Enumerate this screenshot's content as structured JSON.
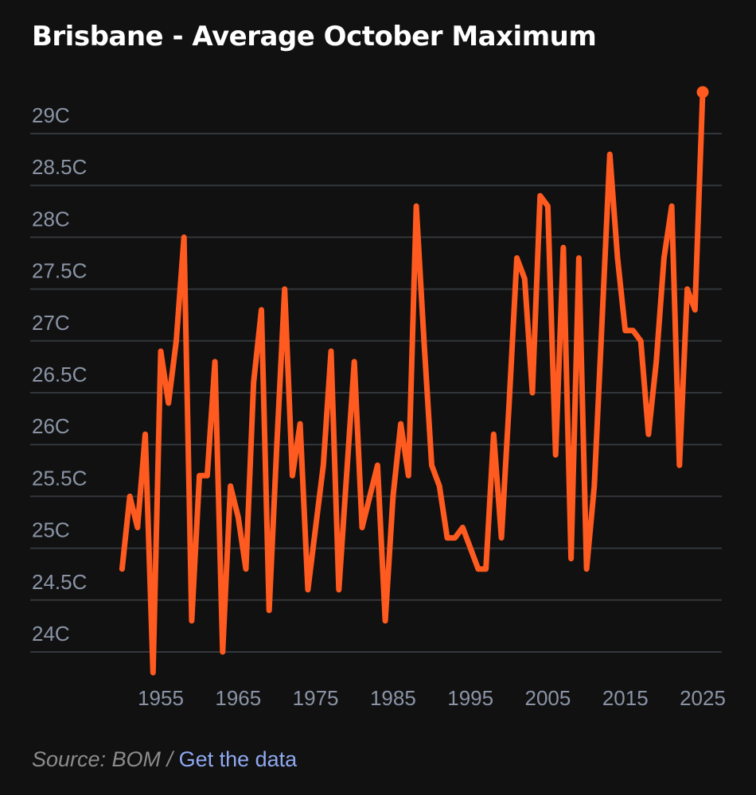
{
  "header": {
    "title": "Brisbane - Average October Maximum"
  },
  "footer": {
    "source_text": "Source: BOM /",
    "link_text": "Get the data"
  },
  "colors": {
    "line": "#ff5a1f",
    "background": "#111111",
    "grid": "#33363b",
    "tick_label": "#8a94a6",
    "source": "#8c8c8c",
    "link": "#8fa8f0"
  },
  "chart_data": {
    "type": "line",
    "title": "Brisbane - Average October Maximum",
    "xlabel": "",
    "ylabel": "",
    "ylim": [
      23.8,
      29.4
    ],
    "xlim": [
      1950,
      2025
    ],
    "grid": true,
    "y_ticks": [
      {
        "value": 24,
        "label": "24C"
      },
      {
        "value": 24.5,
        "label": "24.5C"
      },
      {
        "value": 25,
        "label": "25C"
      },
      {
        "value": 25.5,
        "label": "25.5C"
      },
      {
        "value": 26,
        "label": "26C"
      },
      {
        "value": 26.5,
        "label": "26.5C"
      },
      {
        "value": 27,
        "label": "27C"
      },
      {
        "value": 27.5,
        "label": "27.5C"
      },
      {
        "value": 28,
        "label": "28C"
      },
      {
        "value": 28.5,
        "label": "28.5C"
      },
      {
        "value": 29,
        "label": "29C"
      }
    ],
    "x_ticks": [
      {
        "value": 1955,
        "label": "1955"
      },
      {
        "value": 1965,
        "label": "1965"
      },
      {
        "value": 1975,
        "label": "1975"
      },
      {
        "value": 1985,
        "label": "1985"
      },
      {
        "value": 1995,
        "label": "1995"
      },
      {
        "value": 2005,
        "label": "2005"
      },
      {
        "value": 2015,
        "label": "2015"
      },
      {
        "value": 2025,
        "label": "2025"
      }
    ],
    "series": [
      {
        "name": "Average October Maximum",
        "end_marker": true,
        "x": [
          1950,
          1951,
          1952,
          1953,
          1954,
          1955,
          1956,
          1957,
          1958,
          1959,
          1960,
          1961,
          1962,
          1963,
          1964,
          1965,
          1966,
          1967,
          1968,
          1969,
          1970,
          1971,
          1972,
          1973,
          1974,
          1975,
          1976,
          1977,
          1978,
          1979,
          1980,
          1981,
          1982,
          1983,
          1984,
          1985,
          1986,
          1987,
          1988,
          1989,
          1990,
          1991,
          1992,
          1993,
          1994,
          1995,
          1996,
          1997,
          1998,
          1999,
          2000,
          2001,
          2002,
          2003,
          2004,
          2005,
          2006,
          2007,
          2008,
          2009,
          2010,
          2011,
          2012,
          2013,
          2014,
          2015,
          2016,
          2017,
          2018,
          2019,
          2020,
          2021,
          2022,
          2023,
          2024,
          2025
        ],
        "values": [
          24.8,
          25.5,
          25.2,
          26.1,
          23.8,
          26.9,
          26.4,
          27.0,
          28.0,
          24.3,
          25.7,
          25.7,
          26.8,
          24.0,
          25.6,
          25.3,
          24.8,
          26.6,
          27.3,
          24.4,
          26.0,
          27.5,
          25.7,
          26.2,
          24.6,
          25.2,
          25.8,
          26.9,
          24.6,
          25.7,
          26.8,
          25.2,
          25.5,
          25.8,
          24.3,
          25.5,
          26.2,
          25.7,
          28.3,
          27.0,
          25.8,
          25.6,
          25.1,
          25.1,
          25.2,
          25.0,
          24.8,
          24.8,
          26.1,
          25.1,
          26.4,
          27.8,
          27.6,
          26.5,
          28.4,
          28.3,
          25.9,
          27.9,
          24.9,
          27.8,
          24.8,
          25.6,
          27.2,
          28.8,
          27.8,
          27.1,
          27.1,
          27.0,
          26.1,
          26.8,
          27.8,
          28.3,
          25.8,
          27.5,
          27.3,
          29.4
        ]
      }
    ]
  }
}
